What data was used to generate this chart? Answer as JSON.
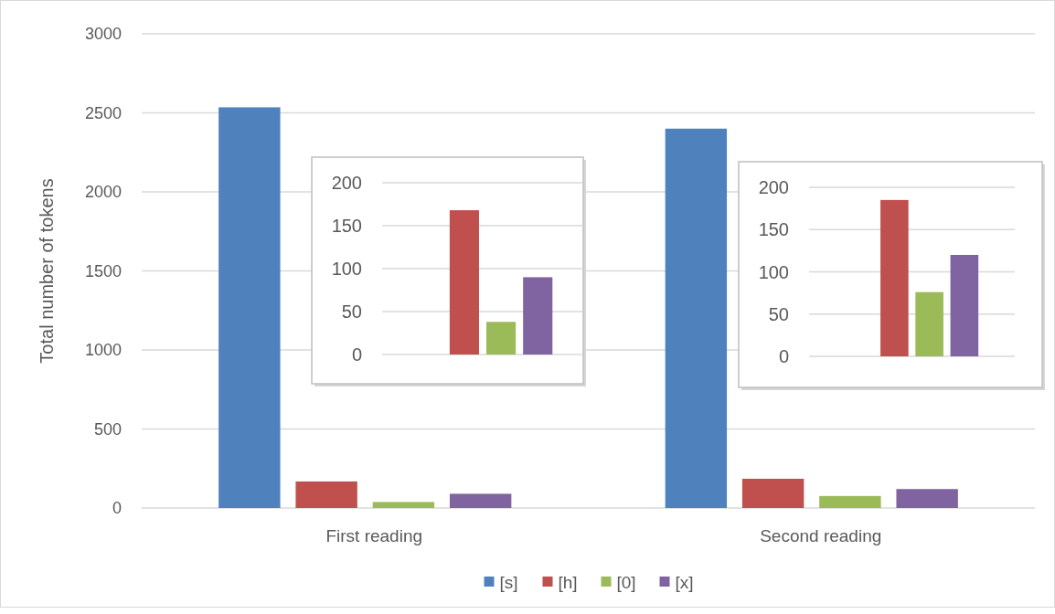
{
  "chart_data": [
    {
      "type": "bar",
      "ylabel": "Total number of tokens",
      "categories": [
        "First reading",
        "Second reading"
      ],
      "series": [
        {
          "name": "[s]",
          "color": "#4f81bd",
          "values": [
            2535,
            2400
          ]
        },
        {
          "name": "[h]",
          "color": "#c0504d",
          "values": [
            168,
            185
          ]
        },
        {
          "name": "[0]",
          "color": "#9bbb59",
          "values": [
            38,
            76
          ]
        },
        {
          "name": "[x]",
          "color": "#8064a2",
          "values": [
            90,
            120
          ]
        }
      ],
      "ylim": [
        0,
        3000
      ],
      "yticks": [
        0,
        500,
        1000,
        1500,
        2000,
        2500,
        3000
      ],
      "grid": "y",
      "legend": "bottom"
    },
    {
      "type": "bar",
      "categories": [
        null
      ],
      "series": [
        {
          "color": "#c0504d",
          "values": [
            168
          ]
        },
        {
          "color": "#9bbb59",
          "values": [
            38
          ]
        },
        {
          "color": "#8064a2",
          "values": [
            90
          ]
        }
      ],
      "ylim": [
        0,
        200
      ],
      "yticks": [
        0,
        50,
        100,
        150,
        200
      ],
      "grid": "y"
    },
    {
      "type": "bar",
      "categories": [
        null
      ],
      "series": [
        {
          "color": "#c0504d",
          "values": [
            185
          ]
        },
        {
          "color": "#9bbb59",
          "values": [
            76
          ]
        },
        {
          "color": "#8064a2",
          "values": [
            120
          ]
        }
      ],
      "ylim": [
        0,
        200
      ],
      "yticks": [
        0,
        50,
        100,
        150,
        200
      ],
      "grid": "y"
    }
  ]
}
